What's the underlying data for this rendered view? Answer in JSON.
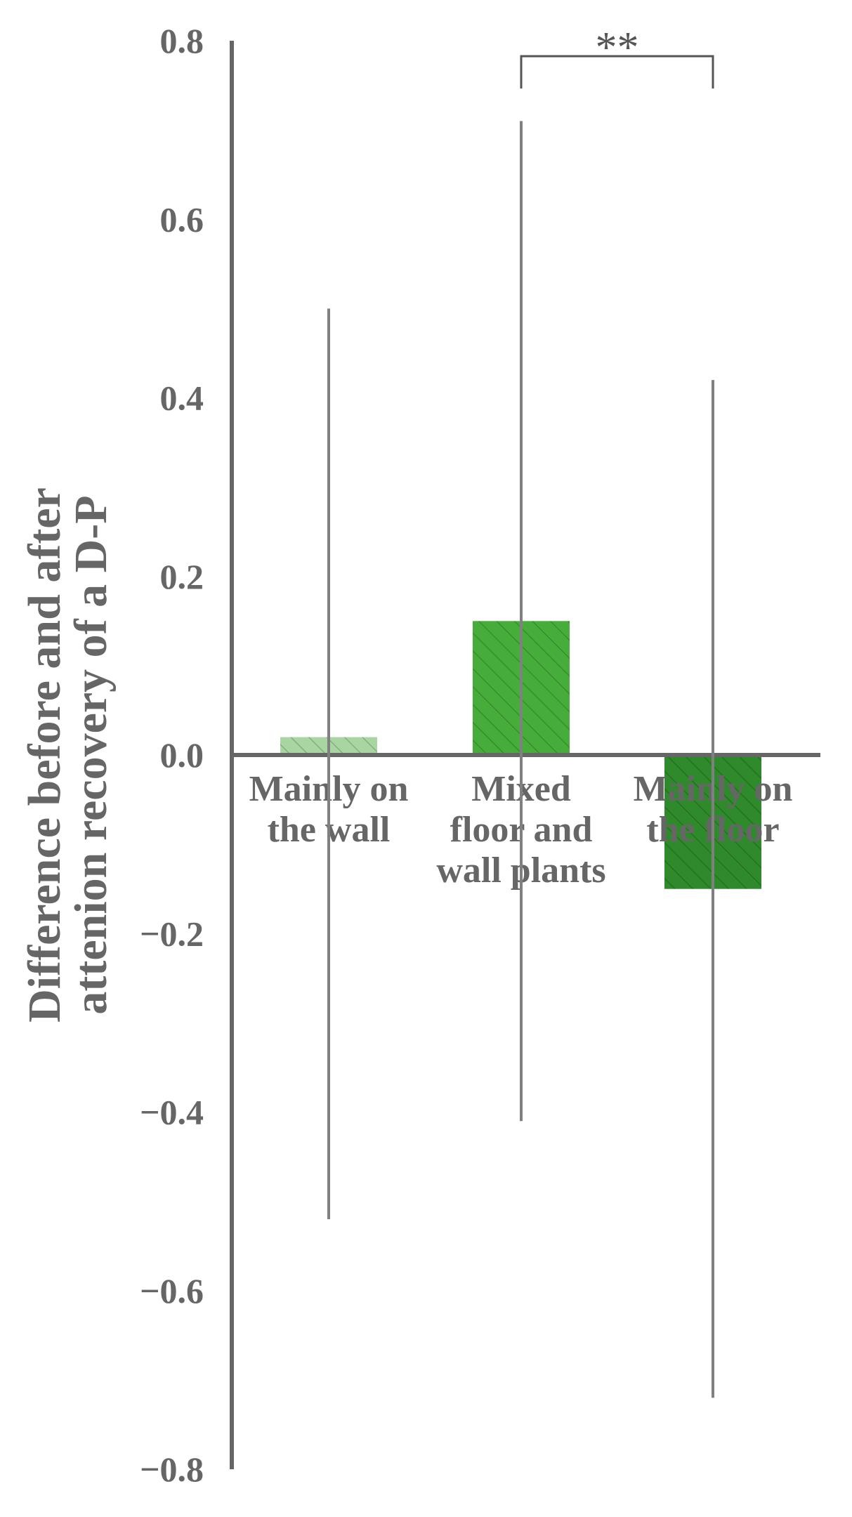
{
  "chart_data": {
    "type": "bar",
    "categories": [
      "Mainly on\nthe wall",
      "Mixed\nfloor and\nwall plants",
      "Mainly on\nthe floor"
    ],
    "values": [
      0.02,
      0.15,
      -0.15
    ],
    "error_low": [
      -0.52,
      -0.41,
      -0.72
    ],
    "error_high": [
      0.5,
      0.71,
      0.42
    ],
    "bar_colors": [
      "#a8d5a2",
      "#46ad3a",
      "#2e8a2a"
    ],
    "title": "",
    "xlabel": "",
    "ylabel": "Difference before and after\nattenion recovery of a D-P",
    "ylim": [
      -0.8,
      0.8
    ],
    "yticks": [
      0.8,
      0.6,
      0.4,
      0.2,
      0.0,
      -0.2,
      -0.4,
      -0.6,
      -0.8
    ],
    "ytick_labels": [
      "0.8",
      "0.6",
      "0.4",
      "0.2",
      "0.0",
      "−0.2",
      "−0.4",
      "−0.6",
      "−0.8"
    ],
    "significance": {
      "from_category": 1,
      "to_category": 2,
      "label": "**"
    },
    "grid": false,
    "legend": "none",
    "hatch": "diagonal",
    "axis_color": "#666666"
  }
}
